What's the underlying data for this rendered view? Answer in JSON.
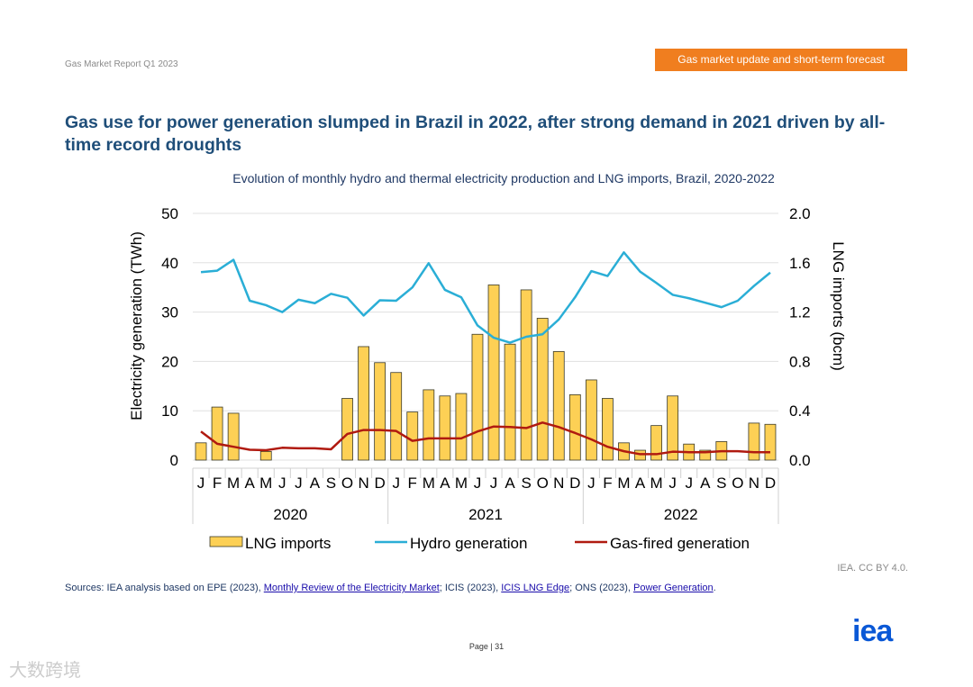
{
  "header": {
    "report": "Gas Market Report Q1 2023",
    "section": "Gas market update and short-term forecast"
  },
  "title": "Gas use for power generation slumped in Brazil in 2022, after strong demand in 2021 driven by all-time record droughts",
  "license": "IEA. CC BY 4.0.",
  "sources": {
    "prefix": "Sources: IEA analysis based on EPE (2023), ",
    "link1": "Monthly Review of the Electricity Market",
    "mid1": "; ICIS (2023), ",
    "link2": "ICIS LNG Edge",
    "mid2": "; ONS (2023), ",
    "link3": "Power Generation",
    "suffix": "."
  },
  "page": "Page | 31",
  "logo": "iea",
  "watermark": "大数跨境",
  "colors": {
    "bars": "#fdd055",
    "hydro": "#2aaed6",
    "gas": "#b01a10"
  },
  "chart_data": {
    "type": "bar+line",
    "title": "Evolution of monthly hydro and thermal electricity production and LNG imports, Brazil, 2020-2022",
    "ylabel": "Electricity generation (TWh)",
    "ylabel_right": "LNG imports (bcm)",
    "ylim": [
      0,
      50
    ],
    "ylim_right": [
      0,
      2.0
    ],
    "yticks": [
      "0",
      "10",
      "20",
      "30",
      "40",
      "50"
    ],
    "yticks_right": [
      "0.0",
      "0.4",
      "0.8",
      "1.2",
      "1.6",
      "2.0"
    ],
    "months": [
      "J",
      "F",
      "M",
      "A",
      "M",
      "J",
      "J",
      "A",
      "S",
      "O",
      "N",
      "D",
      "J",
      "F",
      "M",
      "A",
      "M",
      "J",
      "J",
      "A",
      "S",
      "O",
      "N",
      "D",
      "J",
      "F",
      "M",
      "A",
      "M",
      "J",
      "J",
      "A",
      "S",
      "O",
      "N",
      "D"
    ],
    "years": [
      "2020",
      "2021",
      "2022"
    ],
    "grid": true,
    "legend_position": "bottom",
    "series": [
      {
        "name": "LNG imports",
        "type": "bar",
        "axis": "right",
        "values": [
          0.14,
          0.43,
          0.38,
          0,
          0.07,
          0,
          0,
          0,
          0,
          0.5,
          0.92,
          0.79,
          0.71,
          0.39,
          0.57,
          0.52,
          0.54,
          1.02,
          1.42,
          0.94,
          1.38,
          1.15,
          0.88,
          0.53,
          0.65,
          0.5,
          0.14,
          0.08,
          0.28,
          0.52,
          0.13,
          0.08,
          0.15,
          0,
          0.3,
          0.29
        ]
      },
      {
        "name": "Hydro generation",
        "type": "line",
        "axis": "left",
        "values": [
          38.1,
          38.4,
          40.6,
          32.3,
          31.4,
          30,
          32.5,
          31.8,
          33.7,
          32.9,
          29.3,
          32.4,
          32.3,
          35,
          39.9,
          34.5,
          33,
          27.3,
          24.8,
          23.8,
          25,
          25.5,
          28.5,
          33,
          38.3,
          37.3,
          42.1,
          38.2,
          35.9,
          33.5,
          32.8,
          31.9,
          31,
          32.3,
          35.3,
          38
        ]
      },
      {
        "name": "Gas-fired generation",
        "type": "line",
        "axis": "left",
        "values": [
          5.8,
          3.3,
          2.7,
          2.1,
          2,
          2.5,
          2.4,
          2.4,
          2.2,
          5.3,
          6.1,
          6.1,
          5.9,
          3.9,
          4.4,
          4.4,
          4.4,
          5.8,
          6.8,
          6.7,
          6.5,
          7.6,
          6.7,
          5.5,
          4.2,
          2.7,
          1.8,
          1.2,
          1.2,
          1.7,
          1.6,
          1.6,
          1.8,
          1.8,
          1.6,
          1.6
        ]
      }
    ]
  }
}
